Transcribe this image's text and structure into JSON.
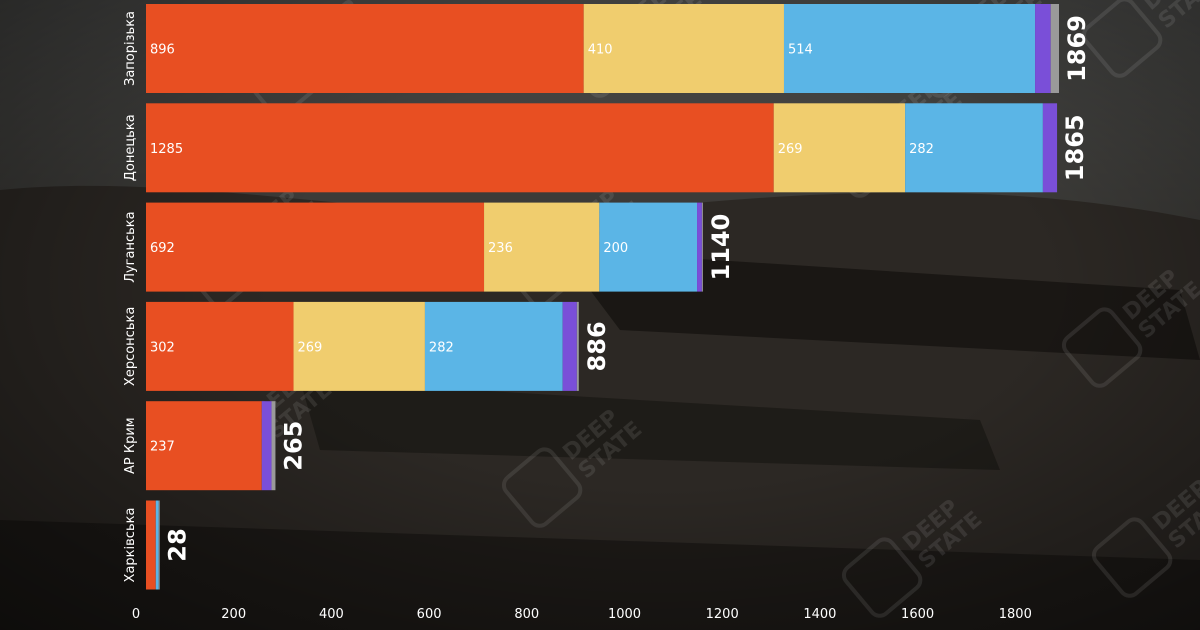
{
  "chart_data": {
    "type": "bar",
    "orientation": "horizontal",
    "stacked": true,
    "categories": [
      "Запорізька",
      "Донецька",
      "Луганська",
      "Херсонська",
      "АР Крим",
      "Харківська"
    ],
    "series": [
      {
        "values": [
          896,
          1285,
          692,
          302,
          237,
          20
        ]
      },
      {
        "values": [
          410,
          269,
          236,
          269,
          0,
          0
        ]
      },
      {
        "values": [
          514,
          282,
          200,
          282,
          0,
          6
        ]
      },
      {
        "values": [
          32,
          29,
          10,
          29,
          20,
          0
        ]
      },
      {
        "values": [
          17,
          0,
          2,
          4,
          8,
          2
        ]
      }
    ],
    "totals": [
      1869,
      1865,
      1140,
      886,
      265,
      28
    ],
    "segment_labels": [
      [
        "896",
        "410",
        "514",
        "",
        ""
      ],
      [
        "1285",
        "269",
        "282",
        "",
        ""
      ],
      [
        "692",
        "236",
        "200",
        "",
        ""
      ],
      [
        "302",
        "269",
        "282",
        "",
        ""
      ],
      [
        "237",
        "",
        "",
        "",
        ""
      ],
      [
        "",
        "",
        "",
        "",
        ""
      ]
    ],
    "x_ticks": [
      0,
      200,
      400,
      600,
      800,
      1000,
      1200,
      1400,
      1600,
      1800
    ],
    "xlim": [
      0,
      1950
    ],
    "grid": false,
    "legend": "none"
  },
  "colors": {
    "series": [
      "#e84f22",
      "#f0cd6e",
      "#5bb5e6",
      "#7a4fd8",
      "#9a9a9a"
    ],
    "total_label": "#ffffff",
    "segment_label": "#ffffff",
    "axis_label": "#ffffff"
  },
  "watermark": {
    "text_line1": "DEEP",
    "text_line2": "STATE"
  }
}
